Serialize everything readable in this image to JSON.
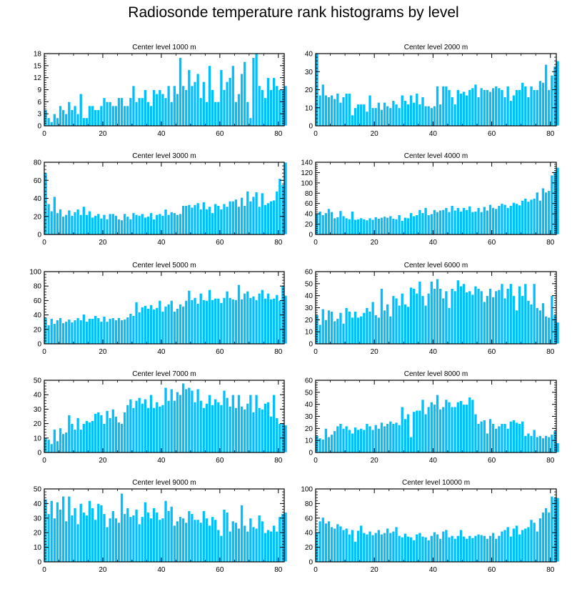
{
  "title": "Radiosonde temperature rank histograms by level",
  "colors": {
    "bar": "#00bfff",
    "bar_edge": "#ffffff",
    "axis": "#000000",
    "background": "#ffffff"
  },
  "chart_data": [
    {
      "type": "bar",
      "title": "Center level 1000 m",
      "xlabel": "",
      "ylabel": "",
      "xlim": [
        0,
        82
      ],
      "ylim": [
        0,
        18
      ],
      "yticks": [
        0,
        3,
        6,
        9,
        12,
        15,
        18
      ],
      "xticks": [
        0,
        20,
        40,
        60,
        80
      ],
      "values": [
        4,
        2,
        1,
        3,
        2,
        5,
        4,
        3,
        6,
        4,
        5,
        3,
        8,
        2,
        2,
        5,
        5,
        4,
        4,
        5,
        7,
        6,
        6,
        5,
        5,
        7,
        7,
        5,
        5,
        7,
        10,
        6,
        7,
        7,
        9,
        6,
        5,
        9,
        8,
        9,
        8,
        7,
        10,
        6,
        10,
        8,
        17,
        10,
        9,
        14,
        10,
        11,
        13,
        7,
        11,
        6,
        15,
        9,
        6,
        6,
        14,
        9,
        11,
        12,
        15,
        6,
        8,
        13,
        16,
        6,
        2,
        17,
        18,
        10,
        9,
        7,
        12,
        9,
        12,
        10,
        9,
        9,
        10
      ]
    },
    {
      "type": "bar",
      "title": "Center level 2000 m",
      "xlabel": "",
      "ylabel": "",
      "xlim": [
        0,
        82
      ],
      "ylim": [
        0,
        40
      ],
      "yticks": [
        0,
        10,
        20,
        30,
        40
      ],
      "xticks": [
        0,
        20,
        40,
        60,
        80
      ],
      "values": [
        40,
        17,
        23,
        17,
        16,
        17,
        15,
        18,
        13,
        16,
        18,
        18,
        6,
        10,
        12,
        12,
        12,
        8,
        17,
        10,
        10,
        13,
        9,
        13,
        11,
        10,
        14,
        12,
        10,
        17,
        14,
        12,
        17,
        13,
        18,
        12,
        16,
        11,
        11,
        10,
        11,
        22,
        12,
        22,
        22,
        20,
        16,
        12,
        20,
        18,
        19,
        17,
        20,
        21,
        23,
        16,
        21,
        20,
        20,
        19,
        21,
        22,
        21,
        20,
        16,
        22,
        14,
        17,
        20,
        20,
        24,
        22,
        16,
        22,
        20,
        20,
        25,
        24,
        34,
        20,
        28,
        33,
        36
      ]
    },
    {
      "type": "bar",
      "title": "Center level 3000 m",
      "xlabel": "",
      "ylabel": "",
      "xlim": [
        0,
        82
      ],
      "ylim": [
        0,
        80
      ],
      "yticks": [
        0,
        20,
        40,
        60,
        80
      ],
      "xticks": [
        0,
        20,
        40,
        60,
        80
      ],
      "values": [
        68,
        34,
        26,
        42,
        24,
        28,
        20,
        22,
        27,
        21,
        25,
        28,
        22,
        31,
        22,
        26,
        19,
        21,
        23,
        18,
        22,
        17,
        23,
        23,
        21,
        17,
        16,
        23,
        20,
        17,
        24,
        22,
        21,
        23,
        19,
        20,
        24,
        17,
        22,
        23,
        21,
        28,
        22,
        25,
        24,
        22,
        23,
        32,
        32,
        33,
        30,
        33,
        35,
        28,
        36,
        28,
        31,
        24,
        34,
        32,
        28,
        34,
        31,
        37,
        37,
        39,
        31,
        41,
        32,
        48,
        37,
        42,
        47,
        31,
        46,
        33,
        35,
        37,
        38,
        48,
        62,
        55,
        80
      ]
    },
    {
      "type": "bar",
      "title": "Center level 4000 m",
      "xlabel": "",
      "ylabel": "",
      "xlim": [
        0,
        82
      ],
      "ylim": [
        0,
        140
      ],
      "yticks": [
        0,
        20,
        40,
        60,
        80,
        100,
        120,
        140
      ],
      "xticks": [
        0,
        20,
        40,
        60,
        80
      ],
      "values": [
        40,
        45,
        38,
        42,
        50,
        44,
        32,
        34,
        46,
        36,
        32,
        30,
        45,
        29,
        30,
        32,
        30,
        28,
        32,
        29,
        34,
        31,
        33,
        35,
        33,
        36,
        31,
        30,
        38,
        27,
        33,
        32,
        42,
        36,
        38,
        48,
        42,
        52,
        38,
        40,
        48,
        44,
        47,
        48,
        52,
        44,
        56,
        47,
        52,
        45,
        52,
        48,
        55,
        44,
        45,
        52,
        44,
        54,
        47,
        58,
        52,
        50,
        56,
        60,
        58,
        52,
        56,
        62,
        60,
        57,
        66,
        70,
        64,
        68,
        70,
        82,
        66,
        90,
        82,
        85,
        115,
        122,
        130
      ]
    },
    {
      "type": "bar",
      "title": "Center level 5000 m",
      "xlabel": "",
      "ylabel": "",
      "xlim": [
        0,
        82
      ],
      "ylim": [
        0,
        100
      ],
      "yticks": [
        0,
        20,
        40,
        60,
        80,
        100
      ],
      "xticks": [
        0,
        20,
        40,
        60,
        80
      ],
      "values": [
        36,
        26,
        35,
        28,
        33,
        36,
        29,
        31,
        34,
        30,
        33,
        36,
        33,
        41,
        31,
        35,
        35,
        39,
        36,
        31,
        38,
        31,
        35,
        36,
        33,
        36,
        33,
        34,
        37,
        42,
        39,
        58,
        44,
        51,
        53,
        49,
        54,
        48,
        50,
        60,
        45,
        52,
        55,
        60,
        45,
        49,
        55,
        52,
        60,
        74,
        61,
        64,
        56,
        70,
        61,
        60,
        75,
        61,
        63,
        63,
        57,
        64,
        73,
        64,
        62,
        61,
        82,
        62,
        70,
        73,
        64,
        66,
        61,
        70,
        75,
        63,
        70,
        62,
        63,
        68,
        60,
        80,
        67
      ]
    },
    {
      "type": "bar",
      "title": "Center level 6000 m",
      "xlabel": "",
      "ylabel": "",
      "xlim": [
        0,
        82
      ],
      "ylim": [
        0,
        60
      ],
      "yticks": [
        0,
        10,
        20,
        30,
        40,
        50,
        60
      ],
      "xticks": [
        0,
        20,
        40,
        60,
        80
      ],
      "values": [
        24,
        16,
        29,
        20,
        28,
        27,
        19,
        21,
        26,
        17,
        30,
        27,
        22,
        27,
        22,
        23,
        26,
        30,
        27,
        35,
        24,
        22,
        46,
        28,
        33,
        23,
        40,
        38,
        32,
        42,
        33,
        31,
        47,
        46,
        42,
        52,
        40,
        32,
        42,
        52,
        46,
        54,
        46,
        38,
        44,
        30,
        46,
        44,
        53,
        48,
        50,
        43,
        44,
        41,
        48,
        46,
        44,
        35,
        40,
        46,
        39,
        44,
        45,
        50,
        38,
        46,
        50,
        40,
        28,
        48,
        40,
        50,
        36,
        33,
        50,
        30,
        28,
        34,
        23,
        22,
        40,
        24,
        18
      ]
    },
    {
      "type": "bar",
      "title": "Center level 7000 m",
      "xlabel": "",
      "ylabel": "",
      "xlim": [
        0,
        82
      ],
      "ylim": [
        0,
        50
      ],
      "yticks": [
        0,
        10,
        20,
        30,
        40,
        50
      ],
      "xticks": [
        0,
        20,
        40,
        60,
        80
      ],
      "values": [
        10,
        9,
        6,
        16,
        8,
        17,
        13,
        14,
        26,
        20,
        16,
        24,
        16,
        20,
        22,
        21,
        22,
        27,
        28,
        26,
        20,
        29,
        24,
        30,
        25,
        21,
        20,
        28,
        33,
        37,
        31,
        36,
        38,
        34,
        37,
        31,
        40,
        31,
        35,
        32,
        33,
        45,
        36,
        44,
        36,
        42,
        40,
        48,
        44,
        45,
        43,
        35,
        44,
        36,
        31,
        34,
        40,
        33,
        37,
        35,
        33,
        43,
        38,
        32,
        40,
        31,
        40,
        32,
        30,
        34,
        40,
        28,
        40,
        31,
        30,
        34,
        35,
        25,
        40,
        24,
        20,
        20,
        19
      ]
    },
    {
      "type": "bar",
      "title": "Center level 8000 m",
      "xlabel": "",
      "ylabel": "",
      "xlim": [
        0,
        82
      ],
      "ylim": [
        0,
        60
      ],
      "yticks": [
        0,
        10,
        20,
        30,
        40,
        50,
        60
      ],
      "xticks": [
        0,
        20,
        40,
        60,
        80
      ],
      "values": [
        14,
        12,
        11,
        20,
        13,
        15,
        18,
        22,
        24,
        20,
        22,
        19,
        16,
        21,
        19,
        20,
        19,
        24,
        22,
        19,
        23,
        20,
        25,
        22,
        24,
        26,
        24,
        25,
        23,
        38,
        28,
        32,
        13,
        34,
        35,
        35,
        44,
        32,
        38,
        42,
        40,
        48,
        36,
        38,
        44,
        42,
        38,
        38,
        42,
        43,
        40,
        40,
        46,
        44,
        32,
        24,
        26,
        27,
        16,
        28,
        24,
        20,
        22,
        24,
        24,
        20,
        26,
        27,
        25,
        24,
        26,
        14,
        16,
        14,
        19,
        13,
        14,
        12,
        14,
        13,
        15,
        18,
        8
      ]
    },
    {
      "type": "bar",
      "title": "Center level 9000 m",
      "xlabel": "",
      "ylabel": "",
      "xlim": [
        0,
        82
      ],
      "ylim": [
        0,
        50
      ],
      "yticks": [
        0,
        10,
        20,
        30,
        40,
        50
      ],
      "xticks": [
        0,
        20,
        40,
        60,
        80
      ],
      "values": [
        43,
        33,
        42,
        30,
        41,
        36,
        45,
        28,
        45,
        32,
        37,
        26,
        40,
        34,
        32,
        42,
        37,
        29,
        40,
        39,
        33,
        24,
        30,
        35,
        30,
        27,
        47,
        33,
        37,
        31,
        32,
        36,
        26,
        31,
        41,
        34,
        30,
        37,
        34,
        29,
        30,
        42,
        35,
        38,
        25,
        28,
        31,
        30,
        27,
        35,
        33,
        29,
        29,
        27,
        35,
        30,
        25,
        31,
        29,
        22,
        18,
        36,
        34,
        21,
        28,
        27,
        23,
        39,
        25,
        21,
        30,
        24,
        23,
        32,
        28,
        20,
        22,
        21,
        25,
        21,
        31,
        33,
        34
      ]
    },
    {
      "type": "bar",
      "title": "Center level 10000 m",
      "xlabel": "",
      "ylabel": "",
      "xlim": [
        0,
        82
      ],
      "ylim": [
        0,
        100
      ],
      "yticks": [
        0,
        20,
        40,
        60,
        80,
        100
      ],
      "xticks": [
        0,
        20,
        40,
        60,
        80
      ],
      "values": [
        40,
        56,
        61,
        53,
        56,
        48,
        46,
        52,
        49,
        44,
        46,
        38,
        44,
        28,
        43,
        50,
        40,
        38,
        42,
        37,
        40,
        44,
        38,
        40,
        46,
        40,
        42,
        48,
        36,
        34,
        39,
        35,
        34,
        30,
        38,
        40,
        35,
        34,
        30,
        36,
        41,
        38,
        32,
        42,
        44,
        34,
        36,
        32,
        36,
        44,
        35,
        32,
        36,
        33,
        36,
        38,
        37,
        36,
        32,
        36,
        40,
        32,
        36,
        42,
        44,
        48,
        35,
        46,
        50,
        38,
        44,
        46,
        48,
        58,
        54,
        42,
        60,
        68,
        74,
        68,
        90,
        88,
        88
      ]
    }
  ]
}
